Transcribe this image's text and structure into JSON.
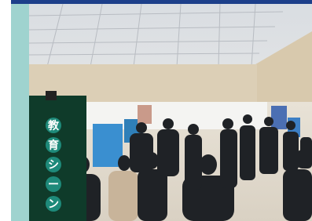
{
  "sign": {
    "characters": [
      "教",
      "育",
      "シ",
      "ー",
      "ン"
    ]
  }
}
